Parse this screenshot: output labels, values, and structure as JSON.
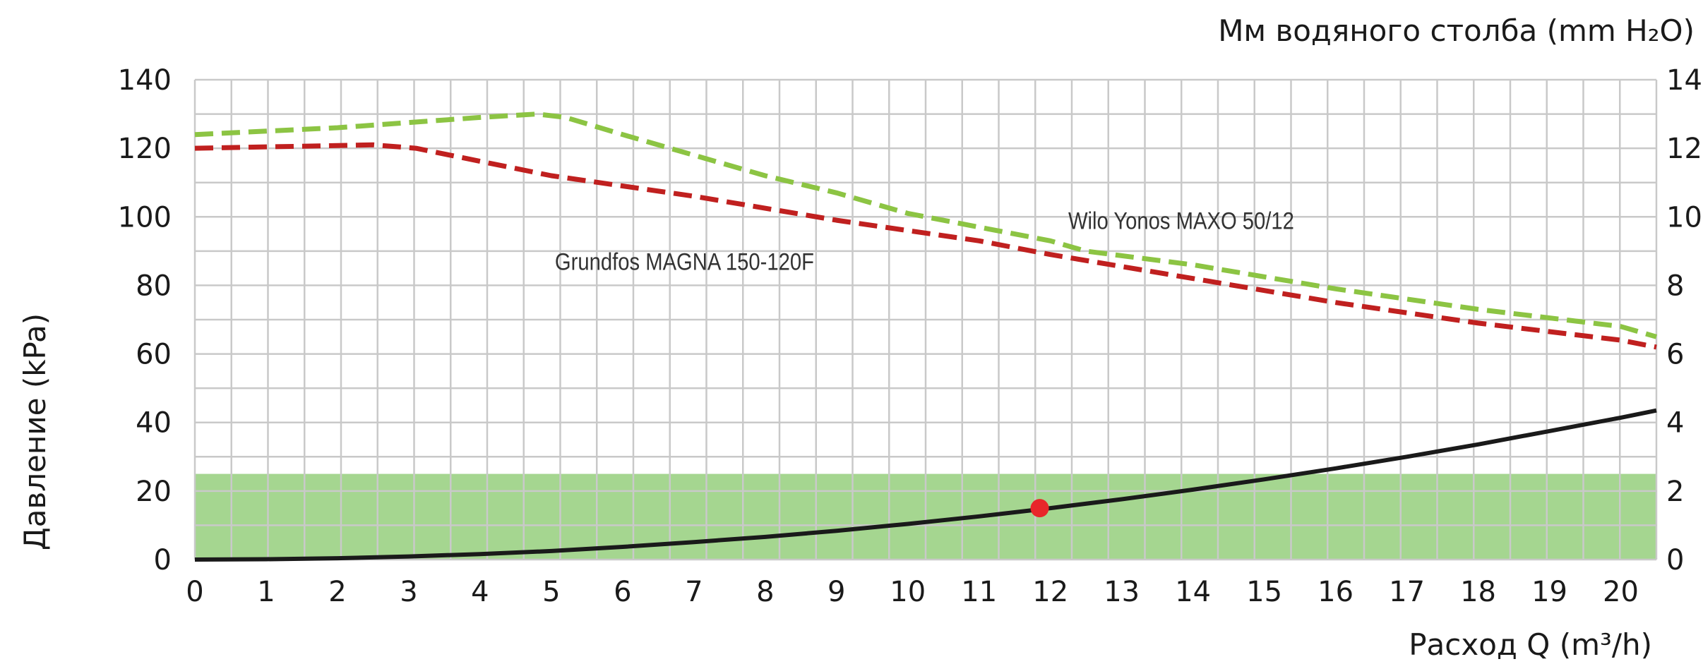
{
  "chart_data": {
    "type": "line",
    "xlabel": "Расход Q (m³/h)",
    "ylabel": "Давление (kPa)",
    "y2label": "Мм водяного столба (mm H₂O)",
    "xlim": [
      0,
      20.5
    ],
    "ylim": [
      0,
      140
    ],
    "x_ticks": [
      "0",
      "1",
      "2",
      "3",
      "4",
      "5",
      "6",
      "7",
      "8",
      "9",
      "10",
      "11",
      "12",
      "13",
      "14",
      "15",
      "16",
      "17",
      "18",
      "19",
      "20"
    ],
    "y_ticks": [
      "0",
      "20",
      "40",
      "60",
      "80",
      "100",
      "120",
      "140"
    ],
    "y2_ticks": [
      "0",
      "2",
      "4",
      "6",
      "8",
      "10",
      "12",
      "14"
    ],
    "grid": true,
    "band": {
      "from": 0,
      "to": 25,
      "color": "#a5d690"
    },
    "series": [
      {
        "name": "Grundfos MAGNA 150-120F",
        "color": "#c0201f",
        "dash": true,
        "x": [
          0,
          2.5,
          3.1,
          5,
          7,
          9,
          11,
          12,
          14,
          16,
          18,
          20,
          20.5
        ],
        "y": [
          120,
          121,
          120,
          112,
          106,
          99,
          93,
          89,
          82,
          75,
          69,
          64,
          62
        ]
      },
      {
        "name": "Wilo Yonos MAXO 50/12",
        "color": "#8cc443",
        "dash": true,
        "x": [
          0,
          2,
          4,
          4.8,
          5.2,
          6,
          7,
          8,
          9,
          10,
          11,
          12,
          12.5,
          14,
          16,
          18,
          20,
          20.5
        ],
        "y": [
          124,
          126,
          129,
          130,
          129,
          124,
          118,
          112,
          107,
          101,
          97,
          93,
          90,
          86,
          79,
          73,
          68,
          65
        ]
      },
      {
        "name": "",
        "color": "#1a1a1a",
        "dash": false,
        "x": [
          0,
          1,
          2,
          3,
          4,
          5,
          6,
          7,
          8,
          9,
          10,
          11,
          12,
          13,
          14,
          15,
          16,
          17,
          18,
          19,
          20,
          20.5
        ],
        "y": [
          0,
          0.1,
          0.4,
          0.9,
          1.6,
          2.5,
          3.7,
          5.1,
          6.6,
          8.4,
          10.4,
          12.6,
          15,
          17.6,
          20.4,
          23.4,
          26.6,
          30,
          33.6,
          37.5,
          41.4,
          43.5
        ]
      }
    ],
    "marker": {
      "x": 11.85,
      "y": 15,
      "color": "#e8262a"
    }
  }
}
